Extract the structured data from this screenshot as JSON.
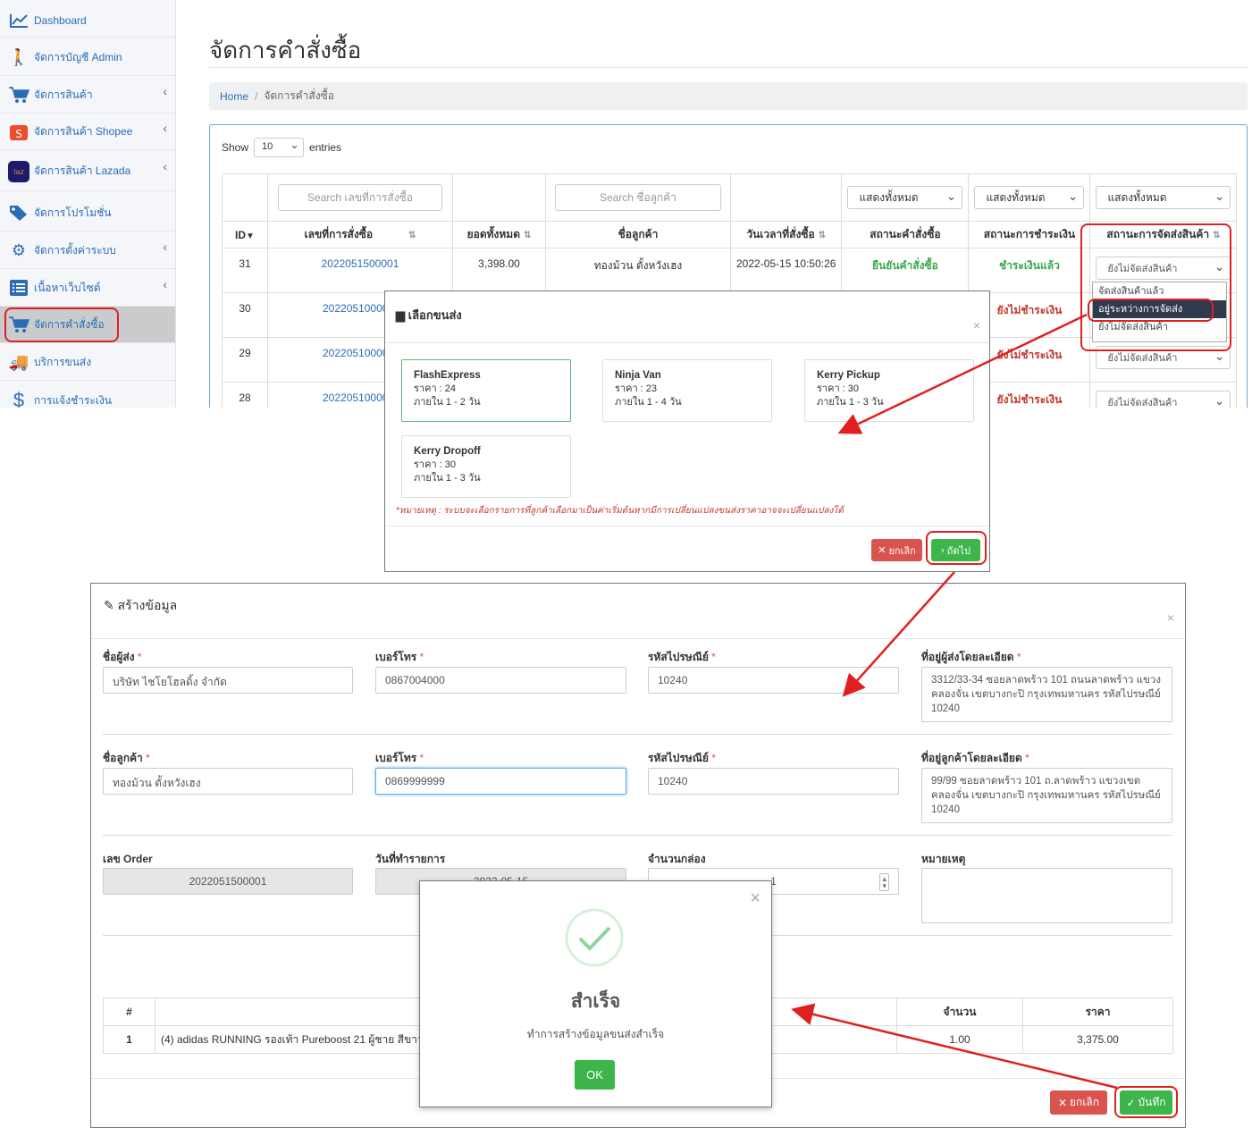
{
  "sidebar": {
    "items": [
      {
        "label": "Dashboard",
        "icon": "chart-line-icon"
      },
      {
        "label": "จัดการบัญชี Admin",
        "icon": "user-icon"
      },
      {
        "label": "จัดการสินค้า",
        "icon": "cart-icon"
      },
      {
        "label": "จัดการสินค้า Shopee",
        "icon": "shopee-icon"
      },
      {
        "label": "จัดการสินค้า Lazada",
        "icon": "lazada-icon"
      },
      {
        "label": "จัดการโปรโมชั่น",
        "icon": "tags-icon"
      },
      {
        "label": "จัดการตั้งค่าระบบ",
        "icon": "gear-icon"
      },
      {
        "label": "เนื้อหาเว็บไซต์",
        "icon": "list-icon"
      },
      {
        "label": "จัดการคำสั่งซื้อ",
        "icon": "cart-icon"
      },
      {
        "label": "บริการขนส่ง",
        "icon": "truck-icon"
      },
      {
        "label": "การแจ้งชำระเงิน",
        "icon": "dollar-icon"
      }
    ]
  },
  "page": {
    "title": "จัดการคำสั่งซื้อ",
    "breadcrumb_home": "Home",
    "breadcrumb_sep": "/",
    "breadcrumb_current": "จัดการคำสั่งซื้อ"
  },
  "table": {
    "show_label": "Show",
    "entries_value": "10",
    "entries_label": "entries",
    "search_order_placeholder": "Search เลขที่การสั่งซื้อ",
    "search_customer_placeholder": "Search ชื่อลูกค้า",
    "filter_all": "แสดงทั้งหมด",
    "headers": [
      "ID",
      "เลขที่การสั่งซื้อ",
      "ยอดทั้งหมด",
      "ชื่อลูกค้า",
      "วันเวลาที่สั่งซื้อ",
      "สถานะคำสั่งซื้อ",
      "สถานะการชำระเงิน",
      "สถานะการจัดส่งสินค้า"
    ],
    "rows": [
      {
        "id": "31",
        "order_no": "2022051500001",
        "total": "3,398.00",
        "customer": "ทองม้วน ตั้งหวังเฮง",
        "datetime": "2022-05-15 10:50:26",
        "order_status": "ยืนยันคำสั่งซื้อ",
        "payment_status": "ชำระเงินแล้ว",
        "ship_status": "ยังไม่จัดส่งสินค้า"
      },
      {
        "id": "30",
        "order_no": "20220510000",
        "payment_status": "ยังไม่ชำระเงิน"
      },
      {
        "id": "29",
        "order_no": "20220510000",
        "payment_status": "ยังไม่ชำระเงิน",
        "ship_status": "ยังไม่จัดส่งสินค้า"
      },
      {
        "id": "28",
        "order_no": "20220510000",
        "payment_status": "ยังไม่ชำระเงิน",
        "ship_status": "ยังไม่จัดส่งสินค้า"
      }
    ],
    "dropdown_options": [
      "จัดส่งสินค้าแล้ว",
      "อยู่ระหว่างการจัดส่ง",
      "ยังไม่จัดส่งสินค้า"
    ]
  },
  "ship_modal": {
    "title": "เลือกขนส่ง",
    "close": "×",
    "options": [
      {
        "name": "FlashExpress",
        "price": "ราคา : 24",
        "time": "ภายใน 1 - 2 วัน"
      },
      {
        "name": "Ninja Van",
        "price": "ราคา : 23",
        "time": "ภายใน 1 - 4 วัน"
      },
      {
        "name": "Kerry Pickup",
        "price": "ราคา : 30",
        "time": "ภายใน 1 - 3 วัน"
      },
      {
        "name": "Kerry Dropoff",
        "price": "ราคา : 30",
        "time": "ภายใน 1 - 3 วัน"
      }
    ],
    "note": "*หมายเหตุ : ระบบจะเลือกรายการที่ลูกค้าเลือกมาเป็นค่าเริ่มต้นหากมีการเปลี่ยนแปลงขนส่งราคาอาจจะเปลี่ยนแปลงได้",
    "cancel": "ยกเลิก",
    "next": "ถัดไป"
  },
  "create_modal": {
    "title": "สร้างข้อมูล",
    "close": "×",
    "sender_name_label": "ชื่อผู้ส่ง",
    "sender_name": "บริษัท ไชโยโฮลดิ้ง จำกัด",
    "sender_phone_label": "เบอร์โทร",
    "sender_phone": "0867004000",
    "sender_zip_label": "รหัสไปรษณีย์",
    "sender_zip": "10240",
    "sender_addr_label": "ที่อยู่ผู้ส่งโดยละเอียด",
    "sender_addr": "3312/33-34 ซอยลาดพร้าว 101 ถนนลาดพร้าว แขวงคลองจั่น เขตบางกะปิ กรุงเทพมหานคร รหัสไปรษณีย์ 10240",
    "cust_name_label": "ชื่อลูกค้า",
    "cust_name": "ทองม้วน ตั้งหวังเฮง",
    "cust_phone_label": "เบอร์โทร",
    "cust_phone": "0869999999",
    "cust_zip_label": "รหัสไปรษณีย์",
    "cust_zip": "10240",
    "cust_addr_label": "ที่อยู่ลูกค้าโดยละเอียด",
    "cust_addr": "99/99 ซอยลาดพร้าว 101 ถ.ลาดพร้าว แขวงเขตคลองจั่น เขตบางกะปิ กรุงเทพมหานคร รหัสไปรษณีย์ 10240",
    "order_label": "เลข Order",
    "order_value": "2022051500001",
    "date_label": "วันที่ทำรายการ",
    "date_value": "2022-05-15",
    "boxes_label": "จำนวนกล่อง",
    "boxes_value": "1",
    "remark_label": "หมายเหตุ",
    "items_headers": [
      "#",
      "",
      "จำนวน",
      "ราคา"
    ],
    "items": [
      {
        "no": "1",
        "name": "(4) adidas RUNNING รองเท้า Pureboost 21 ผู้ชาย สีขาว",
        "qty": "1.00",
        "price": "3,375.00"
      }
    ],
    "cancel": "ยกเลิก",
    "save": "บันทึก"
  },
  "success_modal": {
    "title": "สำเร็จ",
    "message": "ทำการสร้างข้อมูลขนส่งสำเร็จ",
    "ok": "OK",
    "close": "×"
  },
  "colors": {
    "primary_link": "#2a6db5",
    "highlight": "#e02020",
    "success": "#3db54a",
    "danger": "#d9534f"
  }
}
